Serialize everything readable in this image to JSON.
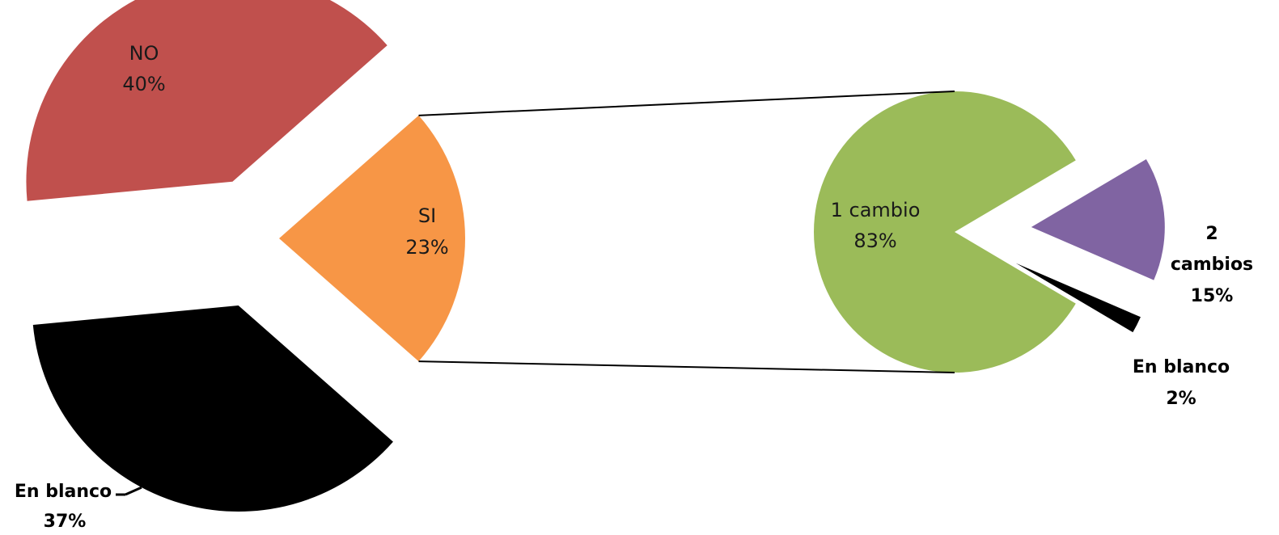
{
  "chart_data": [
    {
      "type": "pie",
      "slices": [
        {
          "label": "NO",
          "value": 40,
          "pct_label": "40%",
          "color": "#c0504d"
        },
        {
          "label": "SI",
          "value": 23,
          "pct_label": "23%",
          "color": "#f79646"
        },
        {
          "label": "En blanco",
          "value": 37,
          "pct_label": "37%",
          "color": "#000000"
        }
      ]
    },
    {
      "type": "pie",
      "slices": [
        {
          "label": "1 cambio",
          "value": 83,
          "pct_label": "83%",
          "color": "#9bbb59"
        },
        {
          "label": "2 cambios",
          "value": 15,
          "pct_label": "15%",
          "color": "#8064a2"
        },
        {
          "label": "En blanco",
          "value": 2,
          "pct_label": "2%",
          "color": "#000000"
        }
      ]
    }
  ]
}
